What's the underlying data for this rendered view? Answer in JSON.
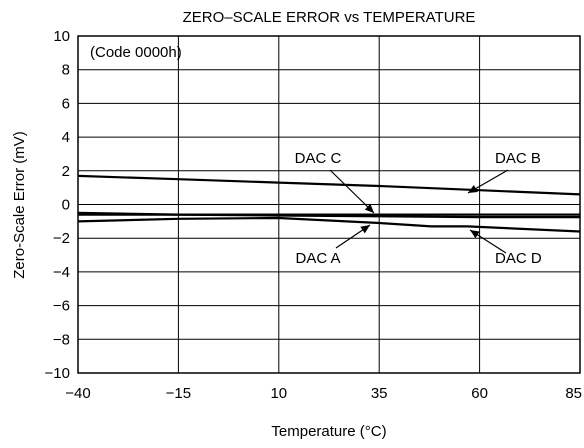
{
  "chart_data": {
    "type": "line",
    "title": "ZERO–SCALE ERROR vs TEMPERATURE",
    "xlabel": "Temperature (°C)",
    "ylabel": "Zero-Scale Error (mV)",
    "xlim": [
      -40,
      85
    ],
    "ylim": [
      -10,
      10
    ],
    "grid": true,
    "xticks": [
      -40,
      -15,
      10,
      35,
      60,
      85
    ],
    "xtick_labels": [
      "−40",
      "−15",
      "10",
      "35",
      "60",
      "85"
    ],
    "yticks": [
      10,
      8,
      6,
      4,
      2,
      0,
      -2,
      -4,
      -6,
      -8,
      -10
    ],
    "ytick_labels": [
      "10",
      "8",
      "6",
      "4",
      "2",
      "0",
      "−2",
      "−4",
      "−6",
      "−8",
      "−10"
    ],
    "annotations": [
      {
        "text": "(Code 0000h)"
      }
    ],
    "series": [
      {
        "name": "DAC B",
        "x": [
          -40,
          -15,
          10,
          35,
          60,
          85
        ],
        "y": [
          1.7,
          1.5,
          1.3,
          1.1,
          0.85,
          0.6
        ]
      },
      {
        "name": "DAC C",
        "x": [
          -40,
          -15,
          10,
          35,
          60,
          85
        ],
        "y": [
          -0.5,
          -0.6,
          -0.65,
          -0.7,
          -0.75,
          -0.75
        ]
      },
      {
        "name": "DAC A",
        "x": [
          -40,
          -15,
          10,
          35,
          60,
          85
        ],
        "y": [
          -0.6,
          -0.6,
          -0.6,
          -0.6,
          -0.6,
          -0.6
        ]
      },
      {
        "name": "DAC D",
        "x": [
          -40,
          -15,
          10,
          35,
          48,
          57,
          85
        ],
        "y": [
          -1.0,
          -0.85,
          -0.8,
          -1.1,
          -1.3,
          -1.3,
          -1.6
        ]
      }
    ]
  }
}
